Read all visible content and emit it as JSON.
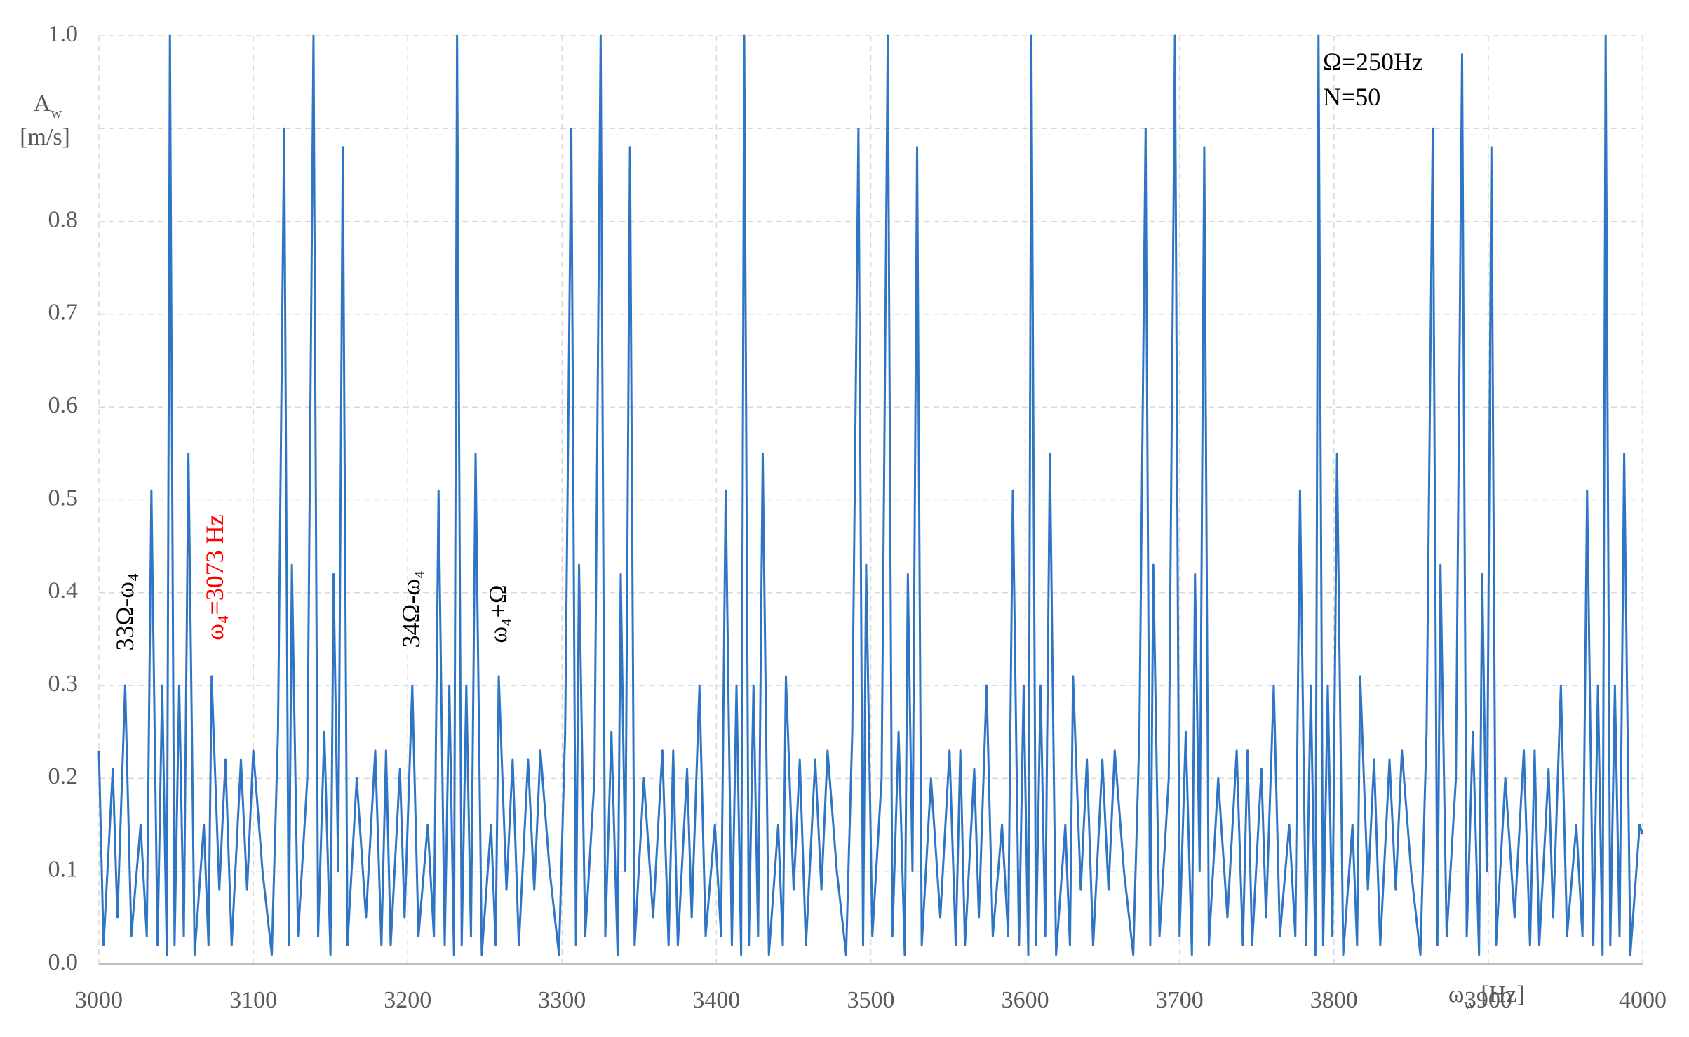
{
  "chart_data": {
    "type": "line",
    "color": "#2f75c5",
    "grid": true,
    "xlim": [
      3000,
      4000
    ],
    "ylim": [
      0,
      1
    ],
    "xticks": [
      3000,
      3100,
      3200,
      3300,
      3400,
      3500,
      3600,
      3700,
      3800,
      3900,
      4000
    ],
    "yticks": [
      {
        "value": 0,
        "label": "0.0"
      },
      0.1,
      0.2,
      0.3,
      0.4,
      0.5,
      0.6,
      0.7,
      0.8,
      {
        "value": 0.9,
        "label": null
      },
      {
        "value": 1,
        "label": "1.0"
      }
    ],
    "y_label": {
      "main": "A",
      "sub": "w",
      "unit": "[m/s]"
    },
    "x_label": {
      "main": "ω",
      "sub": "w",
      "unit": "[Hz]"
    },
    "annotations": [
      "Ω=250Hz",
      "N=50",
      "33Ω-ω₄",
      "ω₄=3073 Hz",
      "34Ω-ω₄",
      "ω₄+Ω"
    ],
    "x": [
      3000,
      3003,
      3009,
      3012,
      3017,
      3021,
      3027,
      3031,
      3034,
      3038,
      3041,
      3044,
      3046,
      3049,
      3052,
      3055,
      3058,
      3062,
      3068,
      3071,
      3073,
      3078,
      3082,
      3086,
      3092,
      3096,
      3100,
      3106,
      3112,
      3116,
      3120,
      3123,
      3125,
      3129,
      3135,
      3139,
      3142,
      3146,
      3150,
      3152,
      3155,
      3158,
      3161,
      3167,
      3173,
      3179,
      3183,
      3186,
      3189,
      3195,
      3198,
      3203,
      3207,
      3213,
      3217,
      3220,
      3224,
      3227,
      3230,
      3232,
      3235,
      3238,
      3241,
      3244,
      3248,
      3254,
      3257,
      3259,
      3264,
      3268,
      3272,
      3278,
      3282,
      3286,
      3292,
      3298,
      3302,
      3306,
      3309,
      3311,
      3315,
      3321,
      3325,
      3328,
      3332,
      3336,
      3338,
      3341,
      3344,
      3347,
      3353,
      3359,
      3365,
      3369,
      3372,
      3375,
      3381,
      3384,
      3389,
      3393,
      3399,
      3403,
      3406,
      3410,
      3413,
      3416,
      3418,
      3421,
      3424,
      3427,
      3430,
      3434,
      3440,
      3443,
      3445,
      3450,
      3454,
      3458,
      3464,
      3468,
      3472,
      3478,
      3484,
      3488,
      3492,
      3495,
      3497,
      3501,
      3507,
      3511,
      3514,
      3518,
      3522,
      3524,
      3527,
      3530,
      3533,
      3539,
      3545,
      3551,
      3555,
      3558,
      3561,
      3567,
      3570,
      3575,
      3579,
      3585,
      3589,
      3592,
      3596,
      3599,
      3602,
      3604,
      3607,
      3610,
      3613,
      3616,
      3620,
      3626,
      3629,
      3631,
      3636,
      3640,
      3644,
      3650,
      3654,
      3658,
      3664,
      3670,
      3674,
      3678,
      3681,
      3683,
      3687,
      3693,
      3697,
      3700,
      3704,
      3708,
      3710,
      3713,
      3716,
      3719,
      3725,
      3731,
      3737,
      3741,
      3744,
      3747,
      3753,
      3756,
      3761,
      3765,
      3771,
      3775,
      3778,
      3782,
      3785,
      3788,
      3790,
      3793,
      3796,
      3799,
      3802,
      3806,
      3812,
      3815,
      3817,
      3822,
      3826,
      3830,
      3836,
      3840,
      3844,
      3850,
      3856,
      3860,
      3864,
      3867,
      3869,
      3873,
      3879,
      3883,
      3886,
      3890,
      3894,
      3896,
      3899,
      3902,
      3905,
      3911,
      3917,
      3923,
      3927,
      3930,
      3933,
      3939,
      3942,
      3947,
      3951,
      3957,
      3961,
      3964,
      3968,
      3971,
      3974,
      3976,
      3979,
      3982,
      3985,
      3988,
      3992,
      3998,
      4000
    ],
    "values": [
      0.23,
      0.02,
      0.21,
      0.05,
      0.3,
      0.03,
      0.15,
      0.03,
      0.51,
      0.02,
      0.3,
      0.01,
      1.0,
      0.02,
      0.3,
      0.03,
      0.55,
      0.01,
      0.15,
      0.02,
      0.31,
      0.08,
      0.22,
      0.02,
      0.22,
      0.08,
      0.23,
      0.1,
      0.01,
      0.25,
      0.9,
      0.02,
      0.43,
      0.03,
      0.2,
      1.0,
      0.03,
      0.25,
      0.01,
      0.42,
      0.1,
      0.88,
      0.02,
      0.2,
      0.05,
      0.23,
      0.02,
      0.23,
      0.02,
      0.21,
      0.05,
      0.3,
      0.03,
      0.15,
      0.03,
      0.51,
      0.02,
      0.3,
      0.01,
      1.0,
      0.02,
      0.3,
      0.03,
      0.55,
      0.01,
      0.15,
      0.02,
      0.31,
      0.08,
      0.22,
      0.02,
      0.22,
      0.08,
      0.23,
      0.1,
      0.01,
      0.25,
      0.9,
      0.02,
      0.43,
      0.03,
      0.2,
      1.0,
      0.03,
      0.25,
      0.01,
      0.42,
      0.1,
      0.88,
      0.02,
      0.2,
      0.05,
      0.23,
      0.02,
      0.23,
      0.02,
      0.21,
      0.05,
      0.3,
      0.03,
      0.15,
      0.03,
      0.51,
      0.02,
      0.3,
      0.01,
      1.0,
      0.02,
      0.3,
      0.03,
      0.55,
      0.01,
      0.15,
      0.02,
      0.31,
      0.08,
      0.22,
      0.02,
      0.22,
      0.08,
      0.23,
      0.1,
      0.01,
      0.25,
      0.9,
      0.02,
      0.43,
      0.03,
      0.2,
      1.0,
      0.03,
      0.25,
      0.01,
      0.42,
      0.1,
      0.88,
      0.02,
      0.2,
      0.05,
      0.23,
      0.02,
      0.23,
      0.02,
      0.21,
      0.05,
      0.3,
      0.03,
      0.15,
      0.03,
      0.51,
      0.02,
      0.3,
      0.01,
      1.0,
      0.02,
      0.3,
      0.03,
      0.55,
      0.01,
      0.15,
      0.02,
      0.31,
      0.08,
      0.22,
      0.02,
      0.22,
      0.08,
      0.23,
      0.1,
      0.01,
      0.25,
      0.9,
      0.02,
      0.43,
      0.03,
      0.2,
      1.0,
      0.03,
      0.25,
      0.01,
      0.42,
      0.1,
      0.88,
      0.02,
      0.2,
      0.05,
      0.23,
      0.02,
      0.23,
      0.02,
      0.21,
      0.05,
      0.3,
      0.03,
      0.15,
      0.03,
      0.51,
      0.02,
      0.3,
      0.01,
      1.0,
      0.02,
      0.3,
      0.03,
      0.55,
      0.01,
      0.15,
      0.02,
      0.31,
      0.08,
      0.22,
      0.02,
      0.22,
      0.08,
      0.23,
      0.1,
      0.01,
      0.25,
      0.9,
      0.02,
      0.43,
      0.03,
      0.2,
      0.98,
      0.03,
      0.25,
      0.01,
      0.42,
      0.1,
      0.88,
      0.02,
      0.2,
      0.05,
      0.23,
      0.02,
      0.23,
      0.02,
      0.21,
      0.05,
      0.3,
      0.03,
      0.15,
      0.03,
      0.51,
      0.02,
      0.3,
      0.01,
      1.0,
      0.02,
      0.3,
      0.03,
      0.55,
      0.01,
      0.15,
      0.14
    ]
  }
}
